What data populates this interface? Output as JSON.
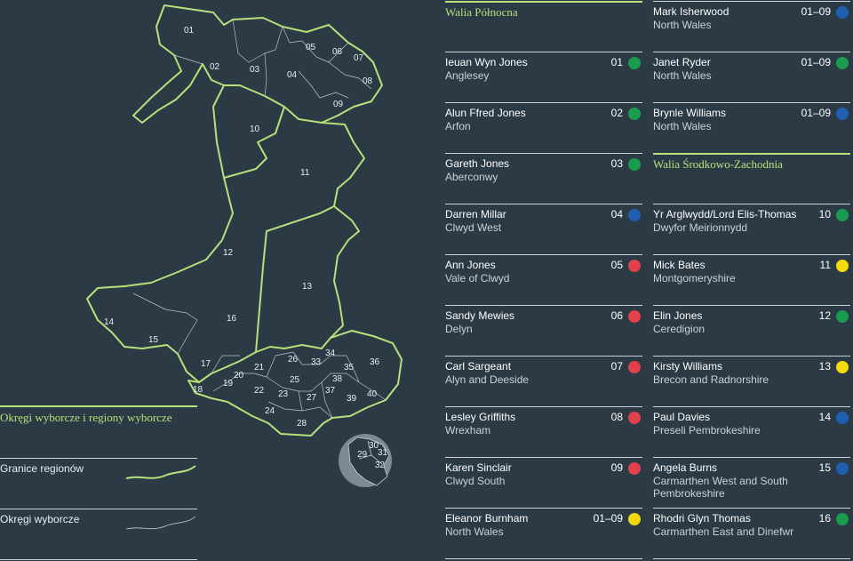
{
  "colors": {
    "green": "#1a9c4e",
    "blue": "#1f5fb2",
    "red": "#e0414b",
    "yellow": "#f5d90a",
    "accent": "#b6e07a"
  },
  "map": {
    "labels": [
      "01",
      "02",
      "03",
      "04",
      "05",
      "06",
      "07",
      "08",
      "09",
      "10",
      "11",
      "12",
      "13",
      "14",
      "15",
      "16",
      "17",
      "18",
      "19",
      "20",
      "21",
      "22",
      "23",
      "24",
      "25",
      "26",
      "27",
      "28",
      "33",
      "34",
      "35",
      "36",
      "37",
      "38",
      "39",
      "40"
    ],
    "inset_labels": [
      "29",
      "30",
      "31",
      "32"
    ]
  },
  "legend": {
    "title": "Okręgi wyborcze i regiony wyborcze",
    "region_borders": "Granice regionów",
    "constituencies": "Okręgi wyborcze"
  },
  "column1": [
    {
      "type": "section",
      "title": "Walia Północna"
    },
    {
      "name": "Ieuan Wyn Jones",
      "area": "Anglesey",
      "num": "01",
      "color": "green"
    },
    {
      "name": "Alun Ffred Jones",
      "area": "Arfon",
      "num": "02",
      "color": "green"
    },
    {
      "name": "Gareth Jones",
      "area": "Aberconwy",
      "num": "03",
      "color": "green"
    },
    {
      "name": "Darren Millar",
      "area": "Clwyd West",
      "num": "04",
      "color": "blue"
    },
    {
      "name": "Ann Jones",
      "area": "Vale of Clwyd",
      "num": "05",
      "color": "red"
    },
    {
      "name": "Sandy Mewies",
      "area": "Delyn",
      "num": "06",
      "color": "red"
    },
    {
      "name": "Carl Sargeant",
      "area": "Alyn and Deeside",
      "num": "07",
      "color": "red"
    },
    {
      "name": "Lesley Griffiths",
      "area": "Wrexham",
      "num": "08",
      "color": "red"
    },
    {
      "name": "Karen Sinclair",
      "area": "Clwyd South",
      "num": "09",
      "color": "red"
    },
    {
      "name": "Eleanor Burnham",
      "area": "North Wales",
      "num": "01–09",
      "color": "yellow"
    }
  ],
  "column2": [
    {
      "name": "Mark Isherwood",
      "area": "North Wales",
      "num": "01–09",
      "color": "blue"
    },
    {
      "name": "Janet Ryder",
      "area": "North Wales",
      "num": "01–09",
      "color": "green"
    },
    {
      "name": "Brynle Williams",
      "area": "North Wales",
      "num": "01–09",
      "color": "blue"
    },
    {
      "type": "section",
      "title": "Walia Środkowo-Zachodnia"
    },
    {
      "name": "Yr Arglwydd/Lord Elis-Thomas",
      "area": "Dwyfor Meirionnydd",
      "num": "10",
      "color": "green"
    },
    {
      "name": "Mick Bates",
      "area": "Montgomeryshire",
      "num": "11",
      "color": "yellow"
    },
    {
      "name": "Elin Jones",
      "area": "Ceredigion",
      "num": "12",
      "color": "green"
    },
    {
      "name": "Kirsty Williams",
      "area": "Brecon and Radnorshire",
      "num": "13",
      "color": "yellow"
    },
    {
      "name": "Paul Davies",
      "area": "Preseli Pembrokeshire",
      "num": "14",
      "color": "blue"
    },
    {
      "name": "Angela Burns",
      "area": "Carmarthen West and South Pembrokeshire",
      "num": "15",
      "color": "blue"
    },
    {
      "name": "Rhodri Glyn Thomas",
      "area": "Carmarthen East and Dinefwr",
      "num": "16",
      "color": "green"
    }
  ]
}
